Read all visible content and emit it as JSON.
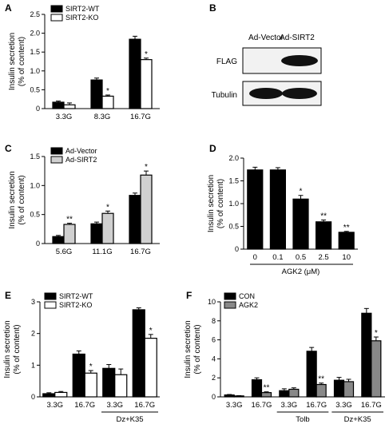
{
  "panels": {
    "a": {
      "letter": "A"
    },
    "b": {
      "letter": "B",
      "lanes": [
        "Ad-Vector",
        "Ad-SIRT2"
      ],
      "rows": [
        "FLAG",
        "Tubulin"
      ]
    },
    "c": {
      "letter": "C"
    },
    "d": {
      "letter": "D"
    },
    "e": {
      "letter": "E"
    },
    "f": {
      "letter": "F"
    }
  },
  "chart_data": [
    {
      "id": "a",
      "type": "bar",
      "ylabel": "Insulin secretion\n(% of content)",
      "categories": [
        "3.3G",
        "8.3G",
        "16.7G"
      ],
      "ylim": [
        0,
        2.5
      ],
      "yticks": [
        "0",
        "0.5",
        "1.0",
        "1.5",
        "2.0",
        "2.5"
      ],
      "legend": "top-left",
      "series": [
        {
          "name": "SIRT2-WT",
          "color": "#000000",
          "values": [
            0.17,
            0.76,
            1.84
          ],
          "errors": [
            0.03,
            0.05,
            0.08
          ],
          "sig": [
            "",
            "",
            ""
          ]
        },
        {
          "name": "SIRT2-KO",
          "color": "#ffffff",
          "values": [
            0.1,
            0.33,
            1.3
          ],
          "errors": [
            0.05,
            0.03,
            0.04
          ],
          "sig": [
            "",
            "*",
            "*"
          ]
        }
      ]
    },
    {
      "id": "c",
      "type": "bar",
      "ylabel": "Insulin secretion\n(% of content)",
      "categories": [
        "5.6G",
        "11.1G",
        "16.7G"
      ],
      "ylim": [
        0,
        1.5
      ],
      "yticks": [
        "0",
        "0.5",
        "1.0",
        "1.5"
      ],
      "legend": "top-left",
      "series": [
        {
          "name": "Ad-Vector",
          "color": "#000000",
          "values": [
            0.12,
            0.34,
            0.83
          ],
          "errors": [
            0.02,
            0.03,
            0.04
          ],
          "sig": [
            "",
            "",
            ""
          ]
        },
        {
          "name": "Ad-SIRT2",
          "color": "#d0d0d0",
          "values": [
            0.33,
            0.52,
            1.18
          ],
          "errors": [
            0.02,
            0.04,
            0.07
          ],
          "sig": [
            "**",
            "*",
            "*"
          ]
        }
      ]
    },
    {
      "id": "d",
      "type": "bar",
      "ylabel": "Insulin secretion\n(% of content)",
      "xlabel": "AGK2 (μM)",
      "categories": [
        "0",
        "0.1",
        "0.5",
        "2.5",
        "10"
      ],
      "ylim": [
        0,
        2.0
      ],
      "yticks": [
        "0",
        "0.5",
        "1.0",
        "1.5",
        "2.0"
      ],
      "series": [
        {
          "name": "",
          "color": "#000000",
          "values": [
            1.74,
            1.74,
            1.1,
            0.6,
            0.37
          ],
          "errors": [
            0.06,
            0.05,
            0.08,
            0.04,
            0.02
          ],
          "sig": [
            "",
            "",
            "*",
            "**",
            "**"
          ]
        }
      ]
    },
    {
      "id": "e",
      "type": "bar",
      "ylabel": "Insulin secretion\n(% of content)",
      "categories": [
        "3.3G",
        "16.7G",
        "3.3G",
        "16.7G"
      ],
      "group_labels": [
        {
          "label": "Dz+K35",
          "from": 2,
          "to": 3
        }
      ],
      "ylim": [
        0,
        3
      ],
      "yticks": [
        "0",
        "1",
        "2",
        "3"
      ],
      "legend": "top-left",
      "series": [
        {
          "name": "SIRT2-WT",
          "color": "#000000",
          "values": [
            0.1,
            1.35,
            0.9,
            2.75
          ],
          "errors": [
            0.03,
            0.1,
            0.12,
            0.06
          ],
          "sig": [
            "",
            "",
            "",
            ""
          ]
        },
        {
          "name": "SIRT2-KO",
          "color": "#ffffff",
          "values": [
            0.14,
            0.75,
            0.7,
            1.85
          ],
          "errors": [
            0.03,
            0.08,
            0.18,
            0.12
          ],
          "sig": [
            "",
            "*",
            "",
            "*"
          ]
        }
      ]
    },
    {
      "id": "f",
      "type": "bar",
      "ylabel": "Insulin secretion\n(% of content)",
      "categories": [
        "3.3G",
        "16.7G",
        "3.3G",
        "16.7G",
        "3.3G",
        "16.7G"
      ],
      "group_labels": [
        {
          "label": "Tolb",
          "from": 2,
          "to": 3
        },
        {
          "label": "Dz+K35",
          "from": 4,
          "to": 5
        }
      ],
      "ylim": [
        0,
        10
      ],
      "yticks": [
        "0",
        "2",
        "4",
        "6",
        "8",
        "10"
      ],
      "legend": "top-left",
      "series": [
        {
          "name": "CON",
          "color": "#000000",
          "values": [
            0.2,
            1.8,
            0.65,
            4.8,
            1.75,
            8.8
          ],
          "errors": [
            0.05,
            0.2,
            0.2,
            0.4,
            0.3,
            0.5
          ],
          "sig": [
            "",
            "",
            "",
            "",
            "",
            ""
          ]
        },
        {
          "name": "AGK2",
          "color": "#888888",
          "values": [
            0.1,
            0.45,
            0.8,
            1.3,
            1.6,
            5.9
          ],
          "errors": [
            0.03,
            0.08,
            0.15,
            0.15,
            0.25,
            0.4
          ],
          "sig": [
            "",
            "**",
            "",
            "**",
            "",
            "*"
          ]
        }
      ]
    }
  ]
}
